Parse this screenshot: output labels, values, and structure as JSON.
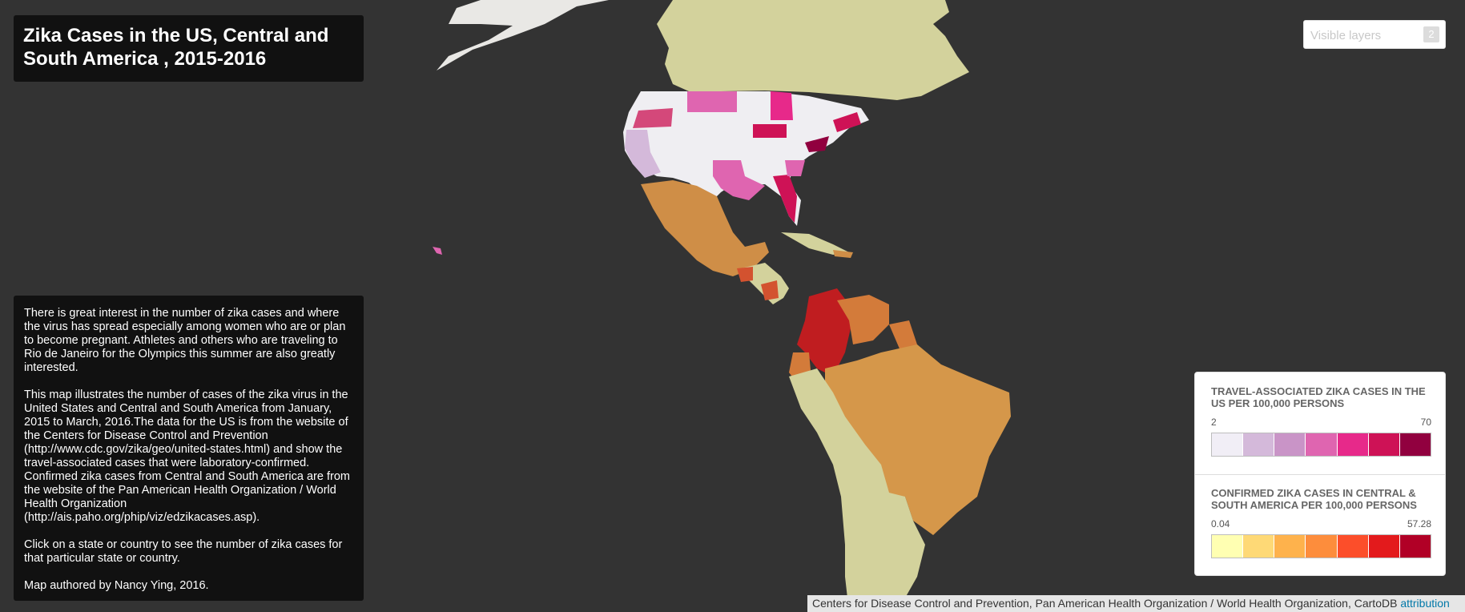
{
  "title": "Zika Cases in the US, Central and South America , 2015-2016",
  "description": [
    "There is great interest in the number of zika cases and where the virus has spread especially among women who are or plan to become pregnant. Athletes and others who are traveling to Rio de Janeiro for the Olympics this summer are also greatly interested.",
    "This map illustrates the number of cases of the zika virus in the United States and Central and South America from January, 2015 to March, 2016.The data for the US is from the website of the Centers for Disease Control and Prevention (http://www.cdc.gov/zika/geo/united-states.html) and show the travel-associated cases that were laboratory-confirmed. Confirmed zika cases from Central and South America are from the website of the Pan American Health Organization / World Health Organization (http://ais.paho.org/phip/viz/edzikacases.asp).",
    "Click on a state or country to see the number of zika cases for that particular state or country.",
    "Map authored by Nancy Ying, 2016."
  ],
  "layer_selector": {
    "label": "Visible layers",
    "count": "2"
  },
  "legend": {
    "us": {
      "title": "TRAVEL-ASSOCIATED ZIKA CASES IN THE US PER 100,000 PERSONS",
      "min": "2",
      "max": "70",
      "colors": [
        "#f1eef6",
        "#d4b9da",
        "#c994c7",
        "#df65b0",
        "#e7298a",
        "#ce1256",
        "#91003f"
      ]
    },
    "latam": {
      "title": "CONFIRMED ZIKA CASES IN CENTRAL & SOUTH AMERICA PER 100,000 PERSONS",
      "min": "0.04",
      "max": "57.28",
      "colors": [
        "#ffffb2",
        "#fed976",
        "#feb24c",
        "#fd8d3c",
        "#fc4e2a",
        "#e31a1c",
        "#b10026"
      ]
    }
  },
  "attribution": {
    "text": "Centers for Disease Control and Prevention, Pan American Health Organization / World Health Organization, CartoDB",
    "link": "attribution"
  },
  "colors": {
    "background": "#333333",
    "land": "#d3d29c",
    "greenland": "#e9e8e5",
    "us_nodata": "#efeef2",
    "mexico": "#cf8e47",
    "brazil": "#d5974a",
    "colombia": "#c01d20",
    "venezuela": "#d37b3a",
    "central_red": "#d3522f"
  }
}
